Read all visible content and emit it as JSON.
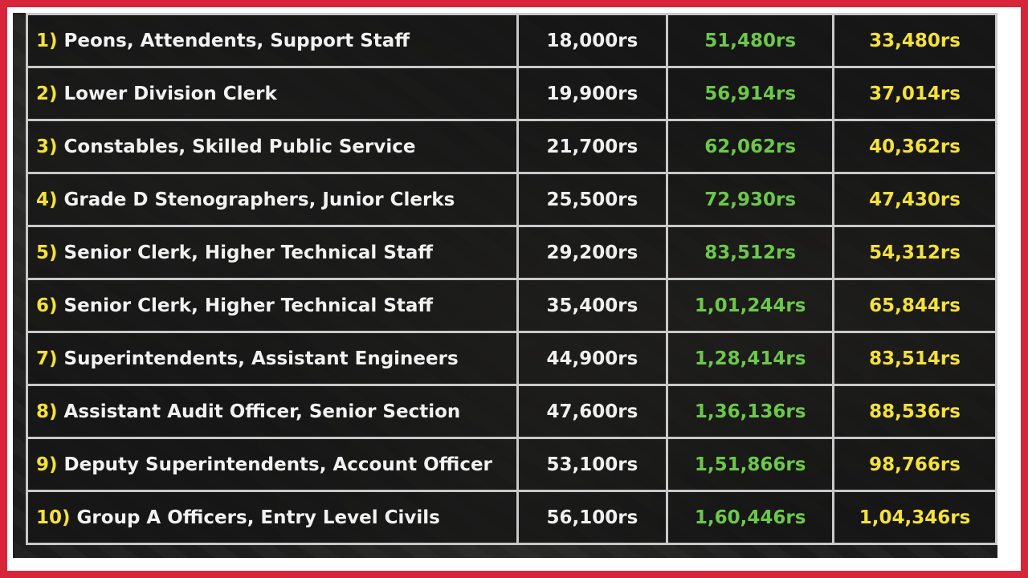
{
  "table": {
    "rows": [
      {
        "num": "1)",
        "post": "Peons, Attendents, Support Staff",
        "basic": "18,000rs",
        "revised": "51,480rs",
        "increase": "33,480rs"
      },
      {
        "num": "2)",
        "post": "Lower Division Clerk",
        "basic": "19,900rs",
        "revised": "56,914rs",
        "increase": "37,014rs"
      },
      {
        "num": "3)",
        "post": "Constables, Skilled Public Service",
        "basic": "21,700rs",
        "revised": "62,062rs",
        "increase": "40,362rs"
      },
      {
        "num": "4)",
        "post": "Grade D Stenographers, Junior Clerks",
        "basic": "25,500rs",
        "revised": "72,930rs",
        "increase": "47,430rs"
      },
      {
        "num": "5)",
        "post": "Senior Clerk, Higher Technical Staff",
        "basic": "29,200rs",
        "revised": "83,512rs",
        "increase": "54,312rs"
      },
      {
        "num": "6)",
        "post": "Senior Clerk, Higher Technical Staff",
        "basic": "35,400rs",
        "revised": "1,01,244rs",
        "increase": "65,844rs"
      },
      {
        "num": "7)",
        "post": "Superintendents, Assistant Engineers",
        "basic": "44,900rs",
        "revised": "1,28,414rs",
        "increase": "83,514rs"
      },
      {
        "num": "8)",
        "post": "Assistant Audit Officer, Senior Section",
        "basic": "47,600rs",
        "revised": "1,36,136rs",
        "increase": "88,536rs"
      },
      {
        "num": "9)",
        "post": "Deputy Superintendents, Account Officer",
        "basic": "53,100rs",
        "revised": "1,51,866rs",
        "increase": "98,766rs"
      },
      {
        "num": "10)",
        "post": "Group A Officers, Entry Level Civils",
        "basic": "56,100rs",
        "revised": "1,60,446rs",
        "increase": "1,04,346rs"
      }
    ]
  },
  "colors": {
    "frame": "#d7263a",
    "revised_text": "#6cc84a",
    "increase_text": "#f4e13a",
    "row_number": "#f4e13a"
  }
}
